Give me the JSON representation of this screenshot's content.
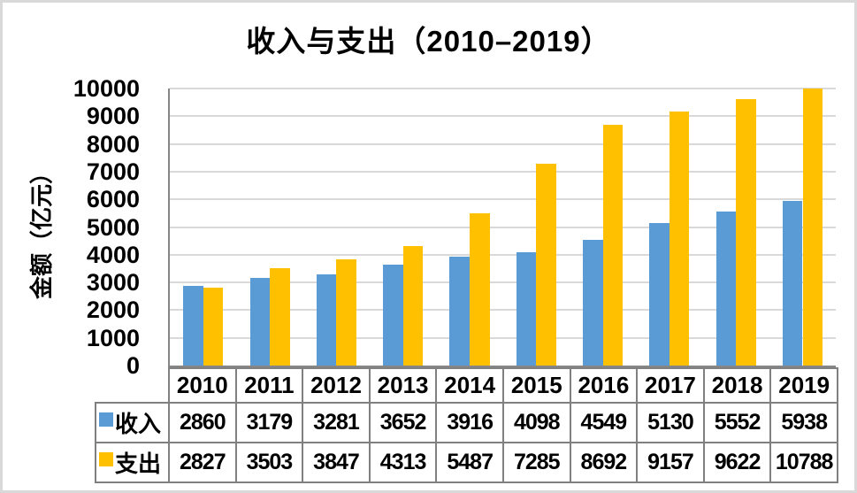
{
  "chart_data": {
    "type": "bar",
    "title": "收入与支出（2010–2019）",
    "y_axis_title": "金额（亿元）",
    "categories": [
      "2010",
      "2011",
      "2012",
      "2013",
      "2014",
      "2015",
      "2016",
      "2017",
      "2018",
      "2019"
    ],
    "series": [
      {
        "key": "income",
        "name": "收入",
        "color": "#5B9BD5",
        "values": [
          2860,
          3179,
          3281,
          3652,
          3916,
          4098,
          4549,
          5130,
          5552,
          5938
        ]
      },
      {
        "key": "expense",
        "name": "支出",
        "color": "#FFC000",
        "values": [
          2827,
          3503,
          3847,
          4313,
          5487,
          7285,
          8692,
          9157,
          9622,
          10788
        ]
      }
    ],
    "ylim": [
      0,
      10000
    ],
    "y_tick_step": 1000,
    "y_tick_labels": [
      "0",
      "1000",
      "2000",
      "3000",
      "4000",
      "5000",
      "6000",
      "7000",
      "8000",
      "9000",
      "10000"
    ],
    "grid": "horizontal",
    "legend_position": "data-table",
    "colors": {
      "income_bar": "#5B9BD5",
      "expense_bar": "#FFC000",
      "gridline": "#D9D9D9",
      "axis_line": "#868686",
      "table_border": "#808080",
      "text": "#000000",
      "frame": "#D9D9D9"
    }
  }
}
